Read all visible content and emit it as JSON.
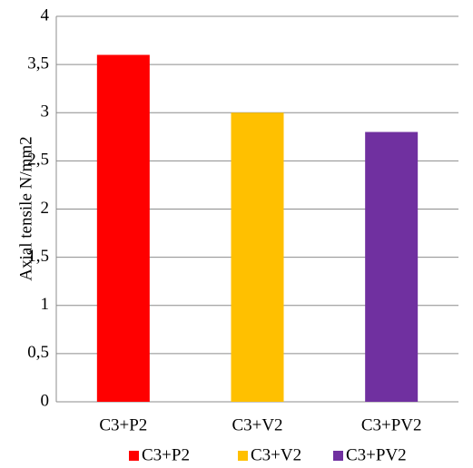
{
  "chart_data": {
    "type": "bar",
    "y_label": "Axial tensile  N/mm2",
    "categories": [
      "C3+P2",
      "C3+V2",
      "C3+PV2"
    ],
    "series": [
      {
        "name": "C3+P2",
        "color": "#ff0000",
        "values": [
          3.6,
          null,
          null
        ]
      },
      {
        "name": "C3+V2",
        "color": "#ffc000",
        "values": [
          null,
          3.0,
          null
        ]
      },
      {
        "name": "C3+PV2",
        "color": "#7030a0",
        "values": [
          null,
          null,
          2.8
        ]
      }
    ],
    "ylim": [
      0,
      4
    ],
    "yticks": [
      0,
      {
        "value": 0.5,
        "label": "0,5"
      },
      1,
      {
        "value": 1.5,
        "label": "1,5"
      },
      2,
      {
        "value": 2.5,
        "label": "2,5"
      },
      3,
      {
        "value": 3.5,
        "label": "3,5"
      },
      4
    ],
    "grid": true,
    "legend": "bottom"
  }
}
